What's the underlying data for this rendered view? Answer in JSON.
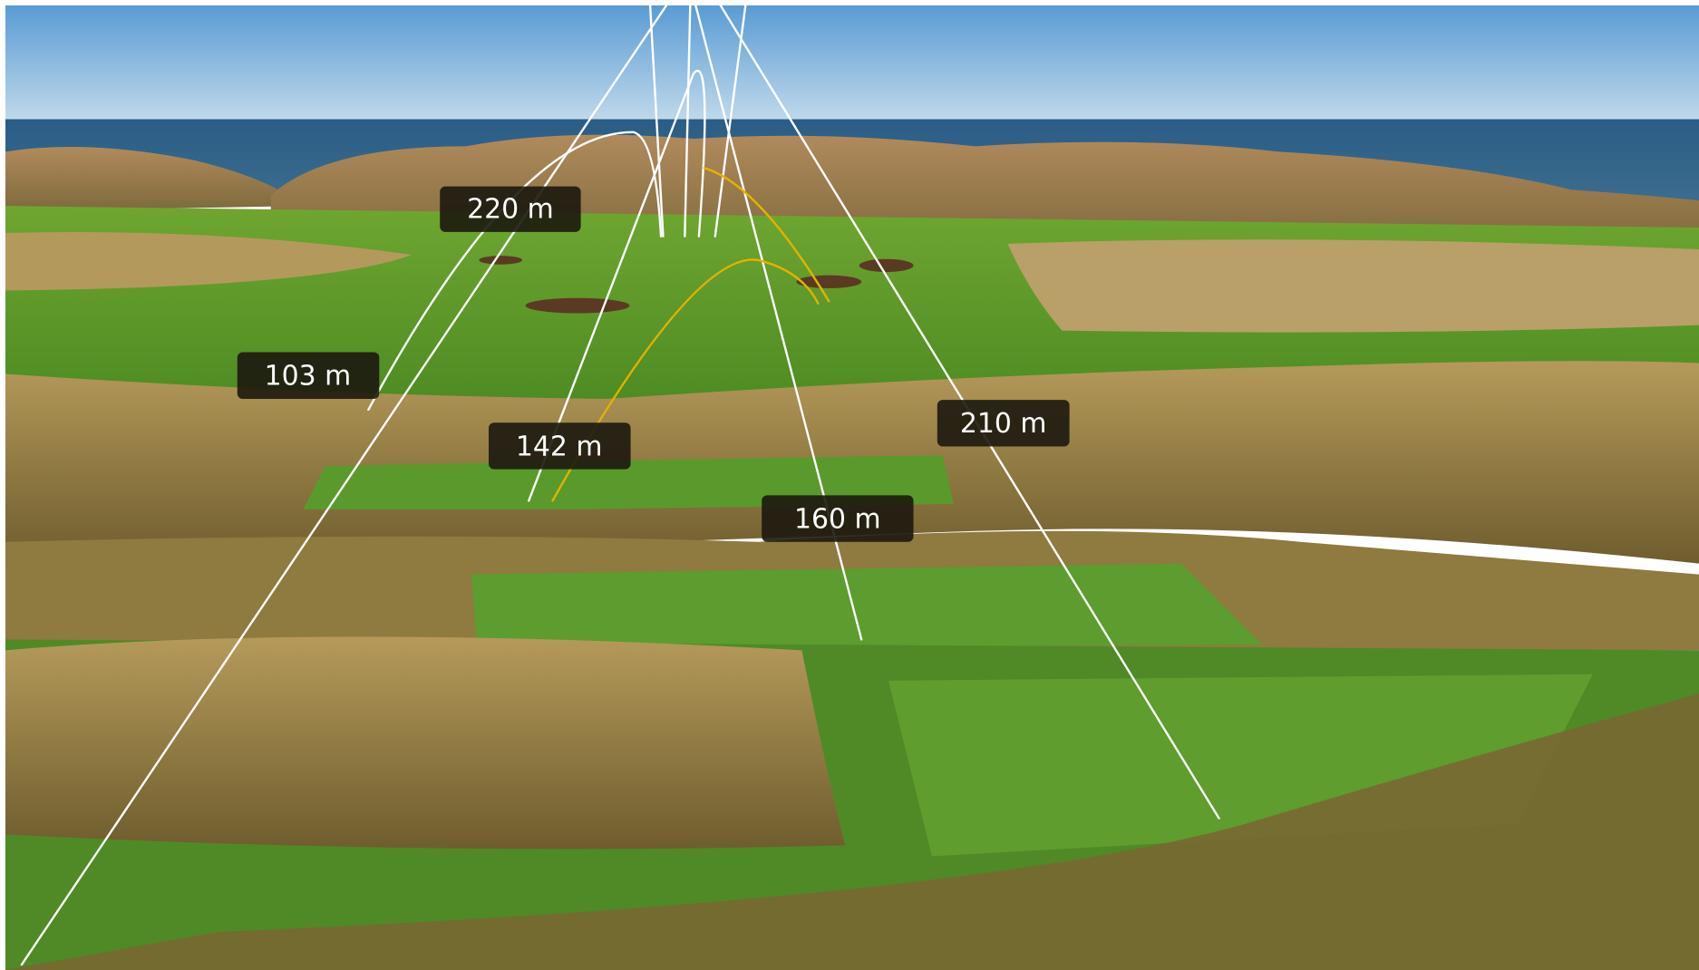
{
  "labels": [
    "220 m",
    "103 m",
    "142 m",
    "210 m",
    "160 m"
  ]
}
